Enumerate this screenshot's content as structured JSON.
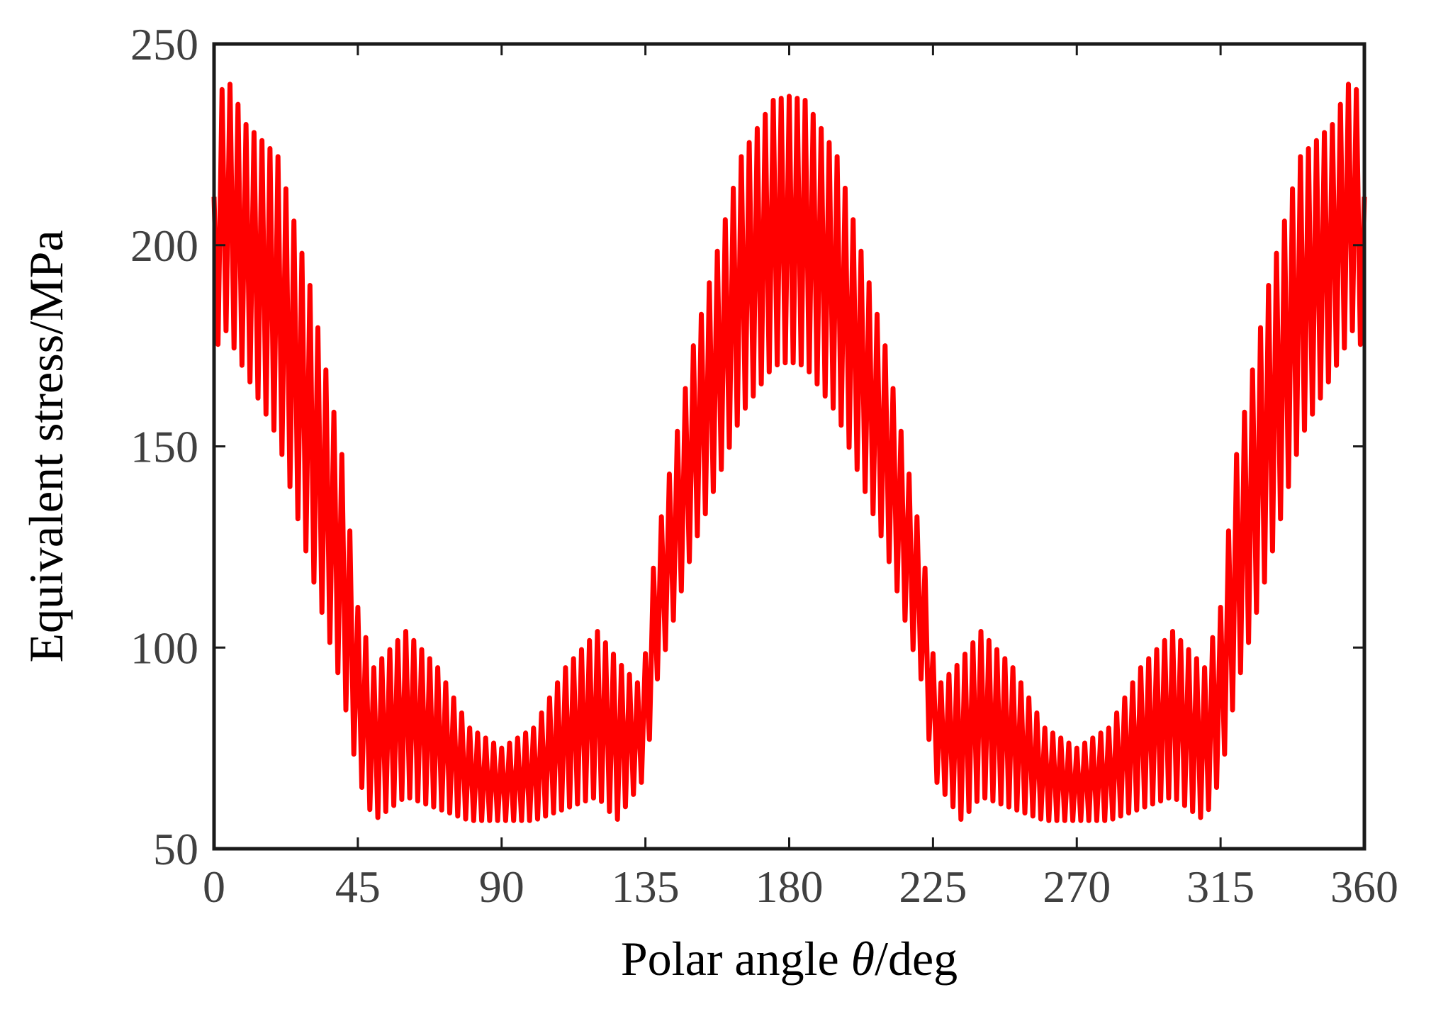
{
  "chart_data": {
    "type": "area",
    "xlabel_text": "Polar angle ",
    "xlabel_symbol": "θ",
    "xlabel_unit": "/deg",
    "ylabel": "Equivalent stress/MPa",
    "xlim": [
      0,
      360
    ],
    "ylim": [
      50,
      250
    ],
    "xticks": [
      0,
      45,
      90,
      135,
      180,
      225,
      270,
      315,
      360
    ],
    "yticks": [
      50,
      100,
      150,
      200,
      250
    ],
    "grid": false,
    "legend": "none",
    "series": [
      {
        "color": "#ff0000",
        "oscillation_period_deg": 2.5,
        "upper_envelope": {
          "x": [
            0,
            3,
            10,
            20,
            30,
            40,
            45,
            50,
            60,
            70,
            80,
            90,
            100,
            110,
            120,
            128,
            134,
            138,
            150,
            165,
            175,
            180,
            185,
            195,
            210,
            222,
            226,
            232,
            240,
            250,
            260,
            270,
            280,
            290,
            300,
            310,
            315,
            320,
            330,
            340,
            350,
            357,
            360
          ],
          "y": [
            212,
            244,
            230,
            222,
            190,
            148,
            110,
            95,
            104,
            95,
            80,
            75,
            80,
            95,
            104,
            95,
            90,
            124,
            175,
            222,
            236,
            237,
            236,
            222,
            175,
            124,
            90,
            95,
            104,
            95,
            80,
            75,
            80,
            95,
            104,
            95,
            110,
            148,
            190,
            222,
            230,
            244,
            212
          ]
        },
        "lower_envelope": {
          "x": [
            0,
            3,
            10,
            20,
            30,
            40,
            45,
            50,
            60,
            70,
            80,
            90,
            100,
            110,
            120,
            126,
            130,
            135,
            138,
            150,
            165,
            175,
            180,
            185,
            195,
            210,
            222,
            225,
            230,
            234,
            240,
            250,
            260,
            270,
            280,
            290,
            300,
            310,
            315,
            320,
            330,
            340,
            350,
            357,
            360
          ],
          "y": [
            172,
            180,
            168,
            152,
            120,
            90,
            68,
            57,
            63,
            60,
            57,
            57,
            57,
            60,
            63,
            57,
            62,
            68,
            90,
            125,
            158,
            170,
            171,
            170,
            158,
            125,
            90,
            68,
            62,
            57,
            63,
            60,
            57,
            57,
            57,
            60,
            63,
            57,
            68,
            90,
            120,
            152,
            168,
            180,
            172
          ]
        }
      }
    ]
  }
}
